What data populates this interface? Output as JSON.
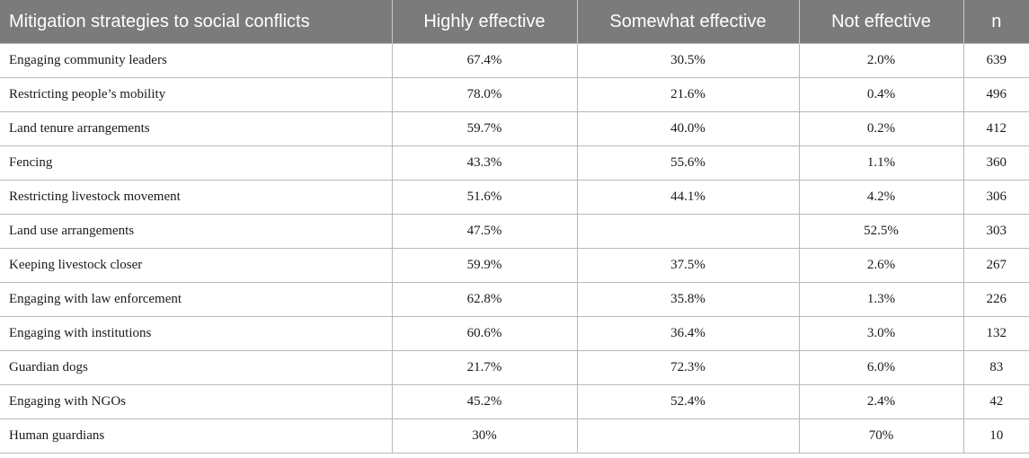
{
  "table": {
    "headers": [
      "Mitigation strategies to social conflicts",
      "Highly effective",
      "Somewhat effective",
      "Not effective",
      "n"
    ],
    "rows": [
      [
        "Engaging community leaders",
        "67.4%",
        "30.5%",
        "2.0%",
        "639"
      ],
      [
        "Restricting people’s mobility",
        "78.0%",
        "21.6%",
        "0.4%",
        "496"
      ],
      [
        "Land tenure arrangements",
        "59.7%",
        "40.0%",
        "0.2%",
        "412"
      ],
      [
        "Fencing",
        "43.3%",
        "55.6%",
        "1.1%",
        "360"
      ],
      [
        "Restricting livestock movement",
        "51.6%",
        "44.1%",
        "4.2%",
        "306"
      ],
      [
        "Land use arrangements",
        "47.5%",
        "",
        "52.5%",
        "303"
      ],
      [
        "Keeping livestock closer",
        "59.9%",
        "37.5%",
        "2.6%",
        "267"
      ],
      [
        "Engaging with law enforcement",
        "62.8%",
        "35.8%",
        "1.3%",
        "226"
      ],
      [
        "Engaging with institutions",
        "60.6%",
        "36.4%",
        "3.0%",
        "132"
      ],
      [
        "Guardian dogs",
        "21.7%",
        "72.3%",
        "6.0%",
        "83"
      ],
      [
        "Engaging with NGOs",
        "45.2%",
        "52.4%",
        "2.4%",
        "42"
      ],
      [
        "Human guardians",
        "30%",
        "",
        "70%",
        "10"
      ]
    ]
  }
}
